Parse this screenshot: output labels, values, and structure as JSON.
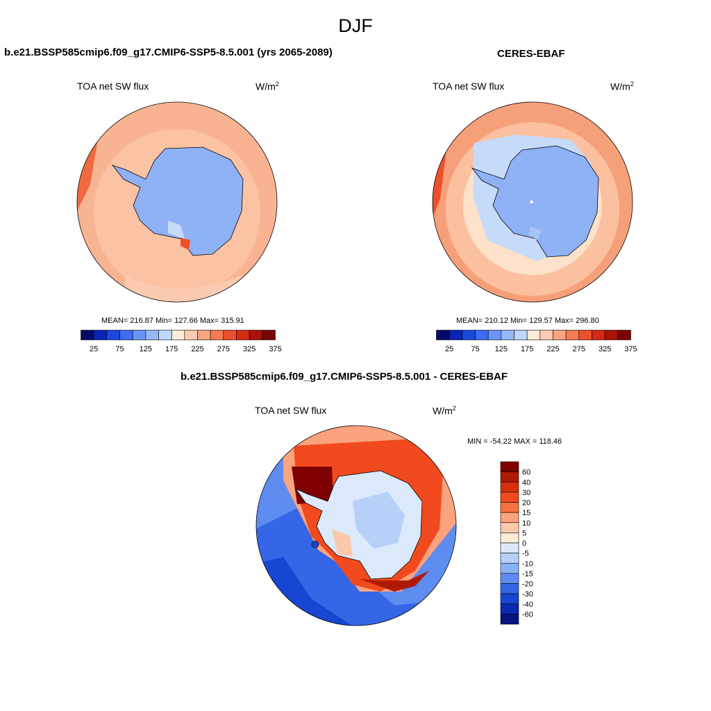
{
  "title": "DJF",
  "panels": {
    "model": {
      "title": "b.e21.BSSP585cmip6.f09_g17.CMIP6-SSP5-8.5.001 (yrs 2065-2089)",
      "variable": "TOA net SW flux",
      "units_base": "W/m",
      "units_exp": "2",
      "stats": "MEAN= 216.87  Min= 127.66  Max= 315.91"
    },
    "obs": {
      "title": "CERES-EBAF",
      "variable": "TOA net SW flux",
      "units_base": "W/m",
      "units_exp": "2",
      "stats": "MEAN= 210.12  Min= 129.57  Max= 296.80"
    },
    "diff": {
      "title": "b.e21.BSSP585cmip6.f09_g17.CMIP6-SSP5-8.5.001 - CERES-EBAF",
      "variable": "TOA net SW flux",
      "units_base": "W/m",
      "units_exp": "2",
      "stats": "MIN = -54.22 MAX = 118.46"
    }
  },
  "colorbar_abs": {
    "colors": [
      "#08086b",
      "#0a24b8",
      "#1848dc",
      "#3c6cf0",
      "#6894f5",
      "#94b8f8",
      "#c0d8fb",
      "#fdebd8",
      "#fbcab0",
      "#f8a47e",
      "#f47a52",
      "#ec4f2b",
      "#d52a13",
      "#ab1109",
      "#7a0403"
    ],
    "labels": [
      "25",
      "75",
      "125",
      "175",
      "225",
      "275",
      "325",
      "375"
    ]
  },
  "colorbar_diff": {
    "colors": [
      "#7f0000",
      "#b01a05",
      "#d8300c",
      "#f04a1e",
      "#f87040",
      "#fba27e",
      "#fcc8ac",
      "#fdebd8",
      "#dce9fb",
      "#b6d0f9",
      "#8cb2f6",
      "#5e8cf0",
      "#3466e6",
      "#1746d2",
      "#0a2ab0",
      "#061480"
    ],
    "labels": [
      "60",
      "40",
      "30",
      "20",
      "15",
      "10",
      "5",
      "0",
      "-5",
      "-10",
      "-15",
      "-20",
      "-30",
      "-40",
      "-60"
    ]
  }
}
